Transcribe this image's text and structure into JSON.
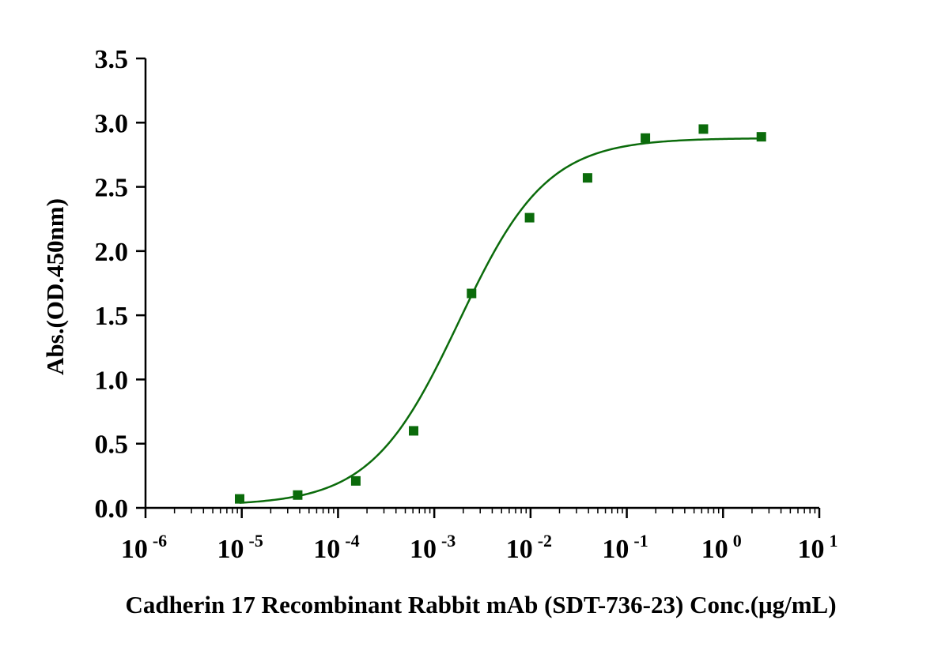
{
  "chart_data": {
    "type": "scatter",
    "title": "",
    "xlabel": "Cadherin 17 Recombinant Rabbit mAb (SDT-736-23) Conc.(μg/mL)",
    "ylabel": "Abs.(OD.450nm)",
    "xscale": "log10",
    "xlim": [
      1e-06,
      10
    ],
    "ylim": [
      0,
      3.5
    ],
    "x_ticks": [
      {
        "base": "10",
        "exp": "-6"
      },
      {
        "base": "10",
        "exp": "-5"
      },
      {
        "base": "10",
        "exp": "-4"
      },
      {
        "base": "10",
        "exp": "-3"
      },
      {
        "base": "10",
        "exp": "-2"
      },
      {
        "base": "10",
        "exp": "-1"
      },
      {
        "base": "10",
        "exp": "0"
      },
      {
        "base": "10",
        "exp": "1"
      }
    ],
    "y_ticks": [
      "0.0",
      "0.5",
      "1.0",
      "1.5",
      "2.0",
      "2.5",
      "3.0",
      "3.5"
    ],
    "series": [
      {
        "color": "#0b6b0b",
        "marker": "square",
        "x": [
          9.5e-06,
          3.81e-05,
          0.000153,
          0.00061,
          0.00244,
          0.00977,
          0.0391,
          0.156,
          0.625,
          2.5
        ],
        "y": [
          0.07,
          0.1,
          0.21,
          0.6,
          1.67,
          2.26,
          2.57,
          2.88,
          2.95,
          2.89
        ],
        "fit": {
          "model": "4PL",
          "bottom": 0.02,
          "top": 2.88,
          "ec50": 0.0018,
          "hill": 0.95
        }
      }
    ],
    "grid": false,
    "legend": "none"
  }
}
